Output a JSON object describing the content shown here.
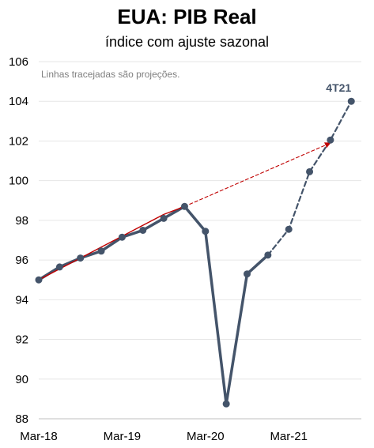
{
  "chart_data": {
    "type": "line",
    "title": "EUA: PIB Real",
    "subtitle": "índice com ajuste sazonal",
    "note": "Linhas tracejadas são projeções.",
    "x_tick_labels": [
      "Mar-18",
      "Mar-19",
      "Mar-20",
      "Mar-21"
    ],
    "ylim": [
      88,
      106
    ],
    "yticks": [
      88,
      90,
      92,
      94,
      96,
      98,
      100,
      102,
      104,
      106
    ],
    "grid": true,
    "x": [
      "1T18",
      "2T18",
      "3T18",
      "4T18",
      "1T19",
      "2T19",
      "3T19",
      "4T19",
      "1T20",
      "2T20",
      "3T20",
      "4T20",
      "1T21",
      "2T21",
      "3T21",
      "4T21"
    ],
    "series": [
      {
        "kind": "actual",
        "color": "#44546a",
        "values": [
          95.0,
          95.65,
          96.1,
          96.45,
          97.15,
          97.5,
          98.1,
          98.7,
          97.45,
          88.75,
          95.3,
          96.25,
          null,
          null,
          null,
          null
        ]
      },
      {
        "kind": "projection",
        "color": "#44546a",
        "values": [
          null,
          null,
          null,
          null,
          null,
          null,
          null,
          null,
          null,
          null,
          null,
          96.25,
          97.55,
          100.45,
          102.05,
          104.0
        ]
      },
      {
        "kind": "trend",
        "color": "#c00000",
        "values": [
          95.0,
          95.55,
          96.1,
          96.65,
          97.2,
          97.75,
          98.3,
          98.7,
          null,
          null,
          null,
          null,
          null,
          null,
          null,
          null
        ]
      },
      {
        "kind": "trend-extrapolation",
        "color": "#c00000",
        "values": [
          null,
          null,
          null,
          null,
          null,
          null,
          null,
          98.7,
          null,
          null,
          null,
          null,
          null,
          null,
          101.9,
          null
        ]
      }
    ],
    "end_label": "4T21"
  }
}
